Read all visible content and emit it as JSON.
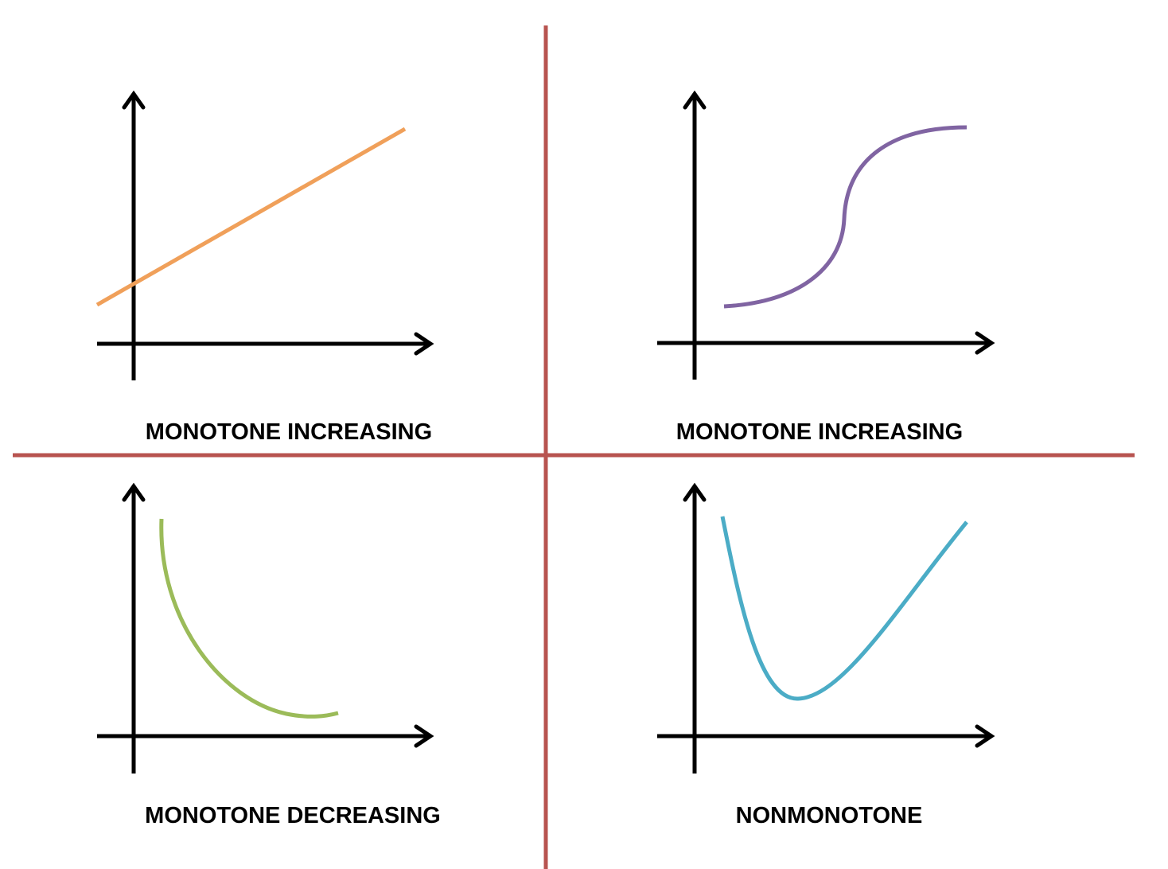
{
  "colors": {
    "divider": "#b85450",
    "axes": "#000000",
    "linear_curve": "#f0a05a",
    "sigmoid_curve": "#8064a2",
    "decreasing_curve": "#9bbb59",
    "valley_curve": "#4bacc6"
  },
  "panels": [
    {
      "label": "MONOTONE INCREASING",
      "curve_shape": "straight-line-rising"
    },
    {
      "label": "MONOTONE INCREASING",
      "curve_shape": "s-curve-rising"
    },
    {
      "label": "MONOTONE DECREASING",
      "curve_shape": "convex-falling"
    },
    {
      "label": "NONMONOTONE",
      "curve_shape": "u-shaped-valley"
    }
  ]
}
